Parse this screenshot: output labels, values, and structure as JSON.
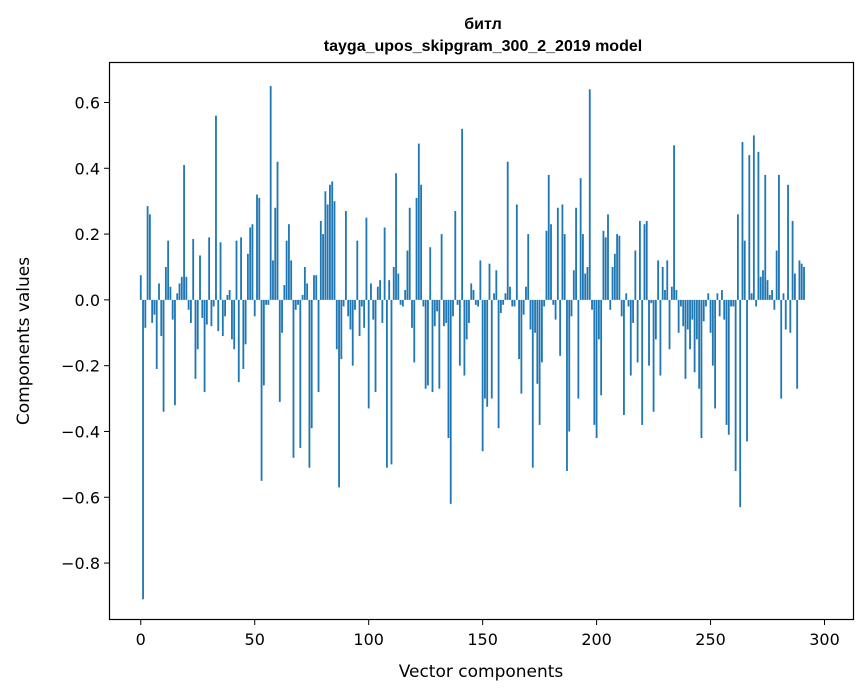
{
  "chart_data": {
    "type": "bar",
    "title_line1": "битл",
    "title_line2": "tayga_upos_skipgram_300_2_2019 model",
    "xlabel": "Vector components",
    "ylabel": "Components values",
    "xlim": [
      -13.5,
      312.5
    ],
    "ylim": [
      -0.97,
      0.72
    ],
    "x_ticks": [
      0,
      50,
      100,
      150,
      200,
      250,
      300
    ],
    "x_tick_labels": [
      "0",
      "50",
      "100",
      "150",
      "200",
      "250",
      "300"
    ],
    "y_ticks": [
      -0.8,
      -0.6,
      -0.4,
      -0.2,
      0.0,
      0.2,
      0.4,
      0.6
    ],
    "y_tick_labels": [
      "−0.8",
      "−0.6",
      "−0.4",
      "−0.2",
      "0.0",
      "0.2",
      "0.4",
      "0.6"
    ],
    "bar_color": "#1f77b4",
    "grid": false,
    "values": [
      0.075,
      -0.91,
      -0.085,
      0.285,
      0.26,
      -0.07,
      -0.045,
      -0.21,
      0.05,
      -0.11,
      -0.34,
      0.1,
      0.18,
      0.04,
      -0.06,
      -0.32,
      0.02,
      0.05,
      0.07,
      0.41,
      0.07,
      -0.03,
      -0.07,
      0.185,
      -0.24,
      -0.15,
      0.135,
      -0.055,
      -0.28,
      -0.075,
      0.19,
      -0.08,
      -0.02,
      0.56,
      -0.095,
      0.175,
      -0.11,
      -0.05,
      0.015,
      0.03,
      -0.12,
      -0.15,
      0.18,
      -0.25,
      0.19,
      -0.21,
      -0.135,
      0.14,
      0.22,
      0.23,
      -0.05,
      0.32,
      0.31,
      -0.55,
      -0.26,
      -0.015,
      -0.015,
      0.65,
      0.12,
      0.28,
      0.42,
      -0.31,
      -0.1,
      0.045,
      0.18,
      0.23,
      0.12,
      -0.48,
      -0.03,
      -0.015,
      -0.45,
      0.015,
      0.1,
      0.05,
      -0.51,
      -0.39,
      0.075,
      0.075,
      -0.28,
      0.24,
      0.2,
      0.33,
      0.29,
      0.35,
      0.36,
      0.3,
      -0.15,
      -0.57,
      -0.18,
      -0.02,
      0.27,
      -0.05,
      -0.09,
      -0.2,
      -0.03,
      0.18,
      -0.11,
      -0.02,
      -0.085,
      0.25,
      -0.33,
      0.05,
      -0.06,
      -0.28,
      0.04,
      0.06,
      -0.07,
      0.22,
      -0.51,
      0.06,
      -0.5,
      0.1,
      0.385,
      0.08,
      -0.015,
      -0.02,
      0.03,
      0.15,
      0.28,
      -0.085,
      -0.19,
      0.31,
      0.475,
      0.35,
      -0.02,
      -0.27,
      -0.26,
      0.16,
      -0.28,
      -0.08,
      -0.035,
      -0.27,
      0.2,
      -0.08,
      -0.07,
      -0.42,
      -0.62,
      -0.05,
      0.27,
      -0.015,
      -0.2,
      0.52,
      -0.23,
      -0.12,
      -0.07,
      0.05,
      0.03,
      -0.015,
      -0.02,
      0.12,
      -0.46,
      -0.3,
      -0.325,
      0.11,
      -0.3,
      0.02,
      0.09,
      -0.39,
      -0.04,
      -0.015,
      0.02,
      0.42,
      0.04,
      -0.02,
      -0.02,
      0.29,
      -0.18,
      -0.285,
      -0.045,
      0.04,
      0.2,
      -0.09,
      -0.51,
      -0.1,
      -0.255,
      -0.38,
      -0.19,
      -0.02,
      0.21,
      0.38,
      0.23,
      -0.015,
      -0.06,
      0.28,
      -0.17,
      0.29,
      0.2,
      -0.52,
      -0.4,
      -0.05,
      0.09,
      0.28,
      -0.3,
      0.37,
      0.2,
      0.08,
      0.1,
      0.64,
      -0.03,
      -0.38,
      -0.42,
      -0.12,
      -0.29,
      0.21,
      0.19,
      0.26,
      -0.03,
      0.1,
      0.14,
      0.2,
      0.195,
      -0.05,
      -0.35,
      0.02,
      -0.02,
      -0.23,
      -0.07,
      0.15,
      -0.19,
      0.24,
      -0.38,
      0.23,
      0.24,
      -0.2,
      -0.01,
      -0.34,
      -0.12,
      0.12,
      -0.23,
      0.1,
      0.03,
      0.12,
      -0.15,
      0.04,
      0.47,
      0.03,
      -0.1,
      -0.02,
      -0.08,
      -0.24,
      -0.09,
      -0.15,
      -0.06,
      -0.22,
      -0.12,
      -0.27,
      -0.42,
      -0.065,
      -0.02,
      0.02,
      -0.1,
      -0.2,
      -0.33,
      0.02,
      -0.05,
      0.03,
      -0.06,
      -0.38,
      -0.41,
      -0.02,
      -0.02,
      -0.52,
      0.26,
      -0.63,
      0.48,
      0.18,
      -0.43,
      0.44,
      0.02,
      0.5,
      -0.02,
      0.45,
      0.07,
      0.09,
      0.38,
      0.06,
      0.015,
      0.03,
      -0.03,
      0.15,
      0.38,
      -0.3,
      0.02,
      -0.09,
      0.35,
      -0.1,
      0.24,
      0.08,
      -0.27,
      0.12,
      0.11,
      0.1
    ]
  }
}
